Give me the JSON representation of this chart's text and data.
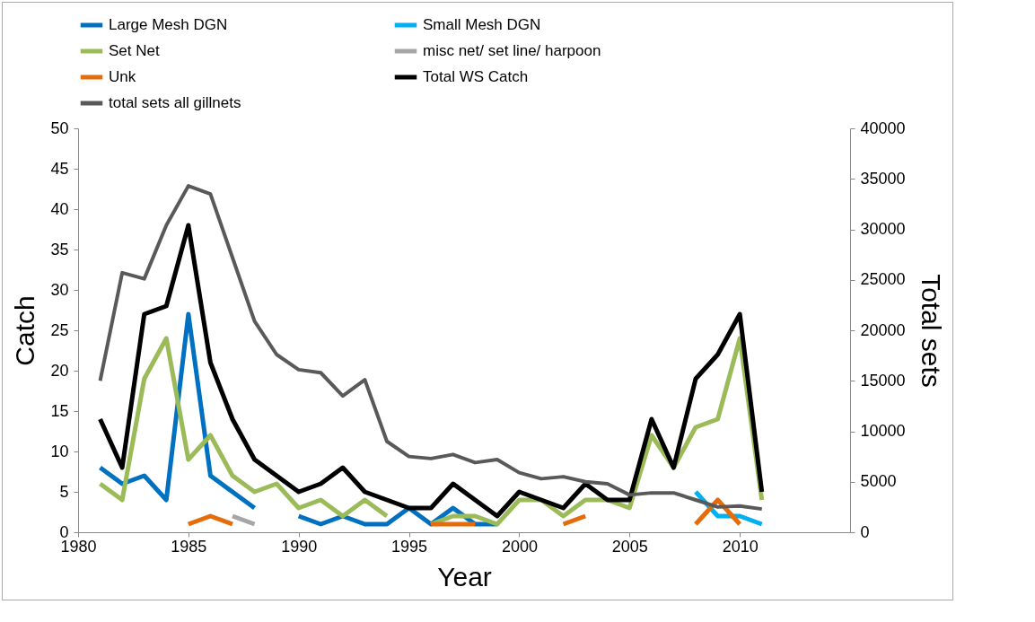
{
  "chart_data": {
    "type": "line",
    "xlabel": "Year",
    "ylabel": "Catch",
    "y2label": "Total sets",
    "x": [
      1981,
      1982,
      1983,
      1984,
      1985,
      1986,
      1987,
      1988,
      1989,
      1990,
      1991,
      1992,
      1993,
      1994,
      1995,
      1996,
      1997,
      1998,
      1999,
      2000,
      2001,
      2002,
      2003,
      2004,
      2005,
      2006,
      2007,
      2008,
      2009,
      2010,
      2011
    ],
    "xlim": [
      1980,
      2015
    ],
    "xticks": [
      1980,
      1985,
      1990,
      1995,
      2000,
      2005,
      2010
    ],
    "ylim": [
      0,
      50
    ],
    "yticks": [
      0,
      5,
      10,
      15,
      20,
      25,
      30,
      35,
      40,
      45,
      50
    ],
    "y2lim": [
      0,
      40000
    ],
    "y2ticks": [
      0,
      5000,
      10000,
      15000,
      20000,
      25000,
      30000,
      35000,
      40000
    ],
    "legend": "top",
    "series": [
      {
        "name": "Large Mesh DGN",
        "color": "#0070c0",
        "values": [
          8,
          6,
          7,
          4,
          27,
          7,
          5,
          3,
          null,
          2,
          1,
          2,
          1,
          1,
          3,
          1,
          3,
          1,
          1,
          null,
          null,
          null,
          null,
          null,
          null,
          null,
          null,
          null,
          null,
          null,
          null
        ]
      },
      {
        "name": "Small Mesh DGN",
        "color": "#00b0f0",
        "values": [
          null,
          null,
          null,
          null,
          null,
          null,
          null,
          null,
          null,
          null,
          null,
          null,
          null,
          null,
          null,
          null,
          null,
          null,
          null,
          null,
          null,
          null,
          null,
          null,
          null,
          null,
          null,
          5,
          2,
          2,
          1
        ]
      },
      {
        "name": "Set Net",
        "color": "#9bbb59",
        "values": [
          6,
          4,
          19,
          24,
          9,
          12,
          7,
          5,
          6,
          3,
          4,
          2,
          4,
          2,
          null,
          1,
          2,
          2,
          1,
          4,
          4,
          2,
          4,
          4,
          3,
          12,
          8,
          13,
          14,
          24,
          4
        ]
      },
      {
        "name": "misc net/ set line/ harpoon",
        "color": "#a6a6a6",
        "values": [
          null,
          null,
          null,
          null,
          null,
          null,
          2,
          1,
          null,
          null,
          null,
          null,
          null,
          null,
          null,
          null,
          null,
          null,
          null,
          null,
          null,
          null,
          null,
          null,
          null,
          null,
          null,
          null,
          null,
          null,
          null
        ]
      },
      {
        "name": "Unk",
        "color": "#e46c0a",
        "values": [
          null,
          null,
          null,
          null,
          1,
          2,
          1,
          null,
          null,
          null,
          null,
          null,
          null,
          null,
          null,
          1,
          1,
          1,
          null,
          null,
          null,
          1,
          2,
          null,
          null,
          null,
          null,
          1,
          4,
          1,
          null
        ]
      },
      {
        "name": "Total WS Catch",
        "color": "#000000",
        "values": [
          14,
          8,
          27,
          28,
          38,
          21,
          14,
          9,
          7,
          5,
          6,
          8,
          5,
          4,
          3,
          3,
          6,
          4,
          2,
          5,
          4,
          3,
          6,
          4,
          4,
          14,
          8,
          19,
          22,
          27,
          5
        ]
      },
      {
        "name": "total sets all gillnets",
        "color": "#595959",
        "axis": "y2",
        "values": [
          15000,
          25700,
          25100,
          30400,
          34300,
          33500,
          27200,
          20900,
          17600,
          16100,
          15800,
          13500,
          15100,
          9000,
          7500,
          7300,
          7700,
          6900,
          7200,
          5900,
          5300,
          5500,
          5000,
          4800,
          3700,
          3900,
          3900,
          3200,
          2500,
          2600,
          2300
        ]
      }
    ]
  }
}
